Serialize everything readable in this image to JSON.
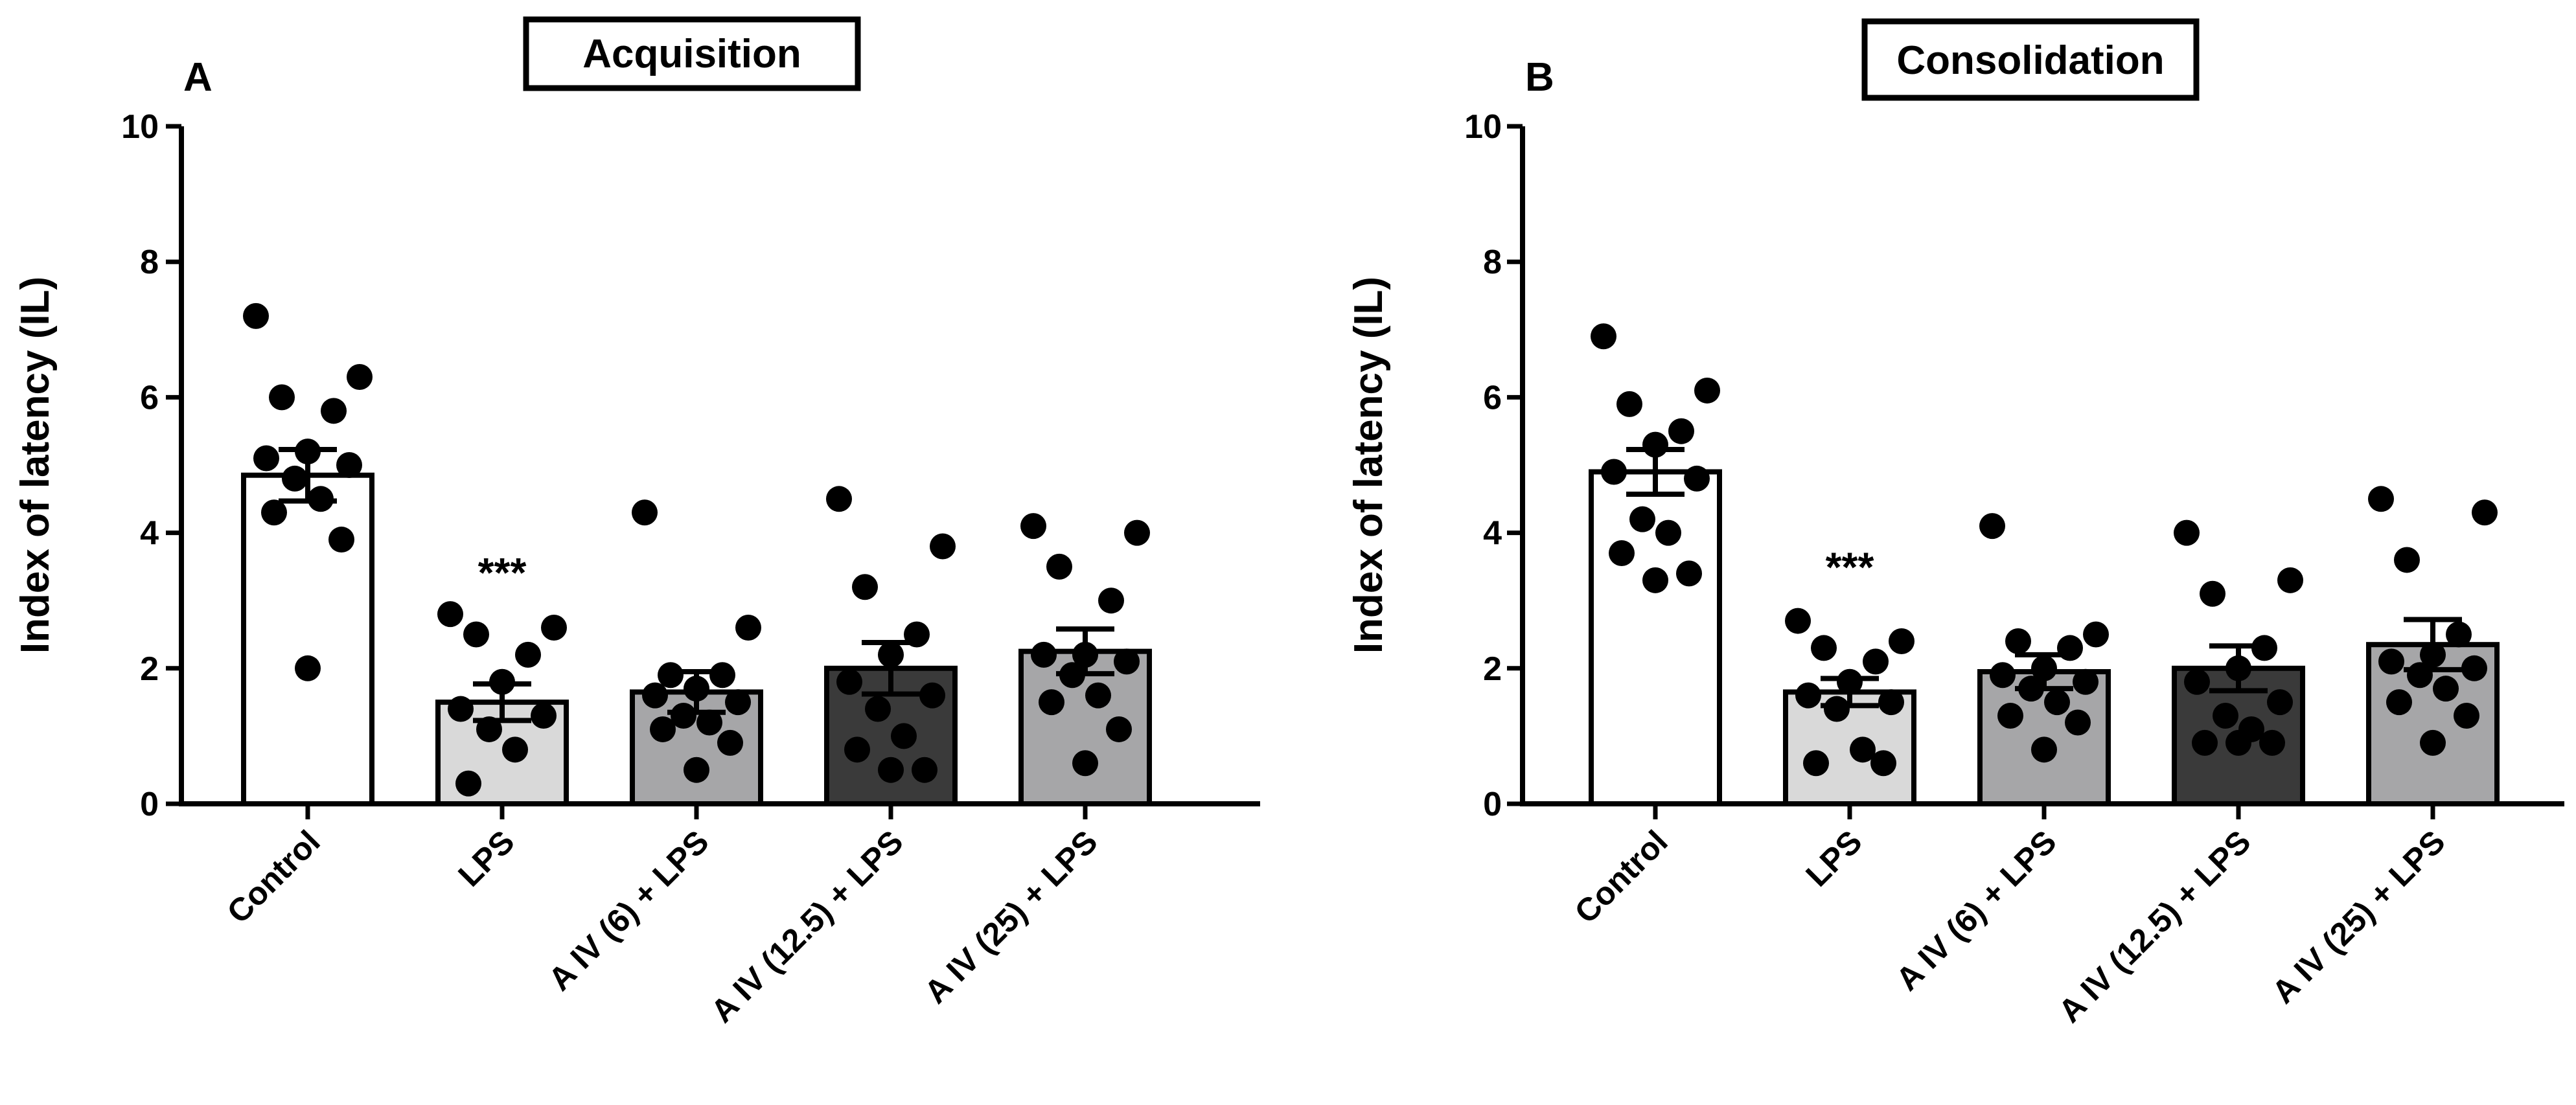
{
  "colors": {
    "control": "#ffffff",
    "lps": "#d9d9d9",
    "aiv6": "#a6a6a8",
    "aiv12": "#3a3a3a",
    "aiv25": "#a6a6a8",
    "stroke": "#000000",
    "point": "#000000"
  },
  "chart_data": [
    {
      "type": "bar",
      "panel_label": "A",
      "title": "Acquisition",
      "ylabel": "Index of latency (IL)",
      "xlabel": "",
      "ylim": [
        0,
        10
      ],
      "yticks": [
        "0",
        "2",
        "4",
        "6",
        "8",
        "10"
      ],
      "categories": [
        "Control",
        "LPS",
        "A IV (6) + LPS",
        "A IV (12.5) + LPS",
        "A IV (25) + LPS"
      ],
      "fills": [
        "control",
        "lps",
        "aiv6",
        "aiv12",
        "aiv25"
      ],
      "means": [
        4.85,
        1.5,
        1.65,
        2.0,
        2.25
      ],
      "sem": [
        0.38,
        0.27,
        0.3,
        0.38,
        0.33
      ],
      "annotations": [
        "",
        "***",
        "",
        "",
        ""
      ],
      "points": [
        [
          7.2,
          6.3,
          6.0,
          5.8,
          5.2,
          5.1,
          5.0,
          4.8,
          4.5,
          4.3,
          3.9,
          2.0
        ],
        [
          2.8,
          2.6,
          2.5,
          2.2,
          1.8,
          1.4,
          1.3,
          1.1,
          0.8,
          0.3
        ],
        [
          4.3,
          2.6,
          1.9,
          1.9,
          1.7,
          1.6,
          1.5,
          1.3,
          1.2,
          1.1,
          0.9,
          0.5
        ],
        [
          4.5,
          3.8,
          3.2,
          2.5,
          2.2,
          1.8,
          1.6,
          1.4,
          1.0,
          0.8,
          0.5,
          0.5
        ],
        [
          4.1,
          4.0,
          3.5,
          3.0,
          2.2,
          2.2,
          2.1,
          1.9,
          1.6,
          1.5,
          1.1,
          0.6
        ]
      ]
    },
    {
      "type": "bar",
      "panel_label": "B",
      "title": "Consolidation",
      "ylabel": "Index of latency (IL)",
      "xlabel": "",
      "ylim": [
        0,
        10
      ],
      "yticks": [
        "0",
        "2",
        "4",
        "6",
        "8",
        "10"
      ],
      "categories": [
        "Control",
        "LPS",
        "A IV (6) + LPS",
        "A IV (12.5) + LPS",
        "A IV (25) + LPS"
      ],
      "fills": [
        "control",
        "lps",
        "aiv6",
        "aiv12",
        "aiv25"
      ],
      "means": [
        4.9,
        1.65,
        1.95,
        2.0,
        2.35
      ],
      "sem": [
        0.33,
        0.2,
        0.25,
        0.33,
        0.37
      ],
      "annotations": [
        "",
        "***",
        "",
        "",
        ""
      ],
      "points": [
        [
          6.9,
          6.1,
          5.9,
          5.5,
          5.3,
          4.9,
          4.8,
          4.2,
          4.0,
          3.7,
          3.4,
          3.3
        ],
        [
          2.7,
          2.4,
          2.3,
          2.1,
          1.8,
          1.6,
          1.5,
          1.4,
          0.8,
          0.6,
          0.6
        ],
        [
          4.1,
          2.5,
          2.4,
          2.3,
          2.0,
          1.9,
          1.8,
          1.7,
          1.5,
          1.3,
          1.2,
          0.8
        ],
        [
          4.0,
          3.3,
          3.1,
          2.3,
          2.0,
          1.8,
          1.5,
          1.3,
          1.1,
          0.9,
          0.9,
          0.9
        ],
        [
          4.5,
          4.3,
          3.6,
          2.5,
          2.2,
          2.1,
          2.0,
          1.9,
          1.7,
          1.5,
          1.3,
          0.9
        ]
      ]
    }
  ]
}
